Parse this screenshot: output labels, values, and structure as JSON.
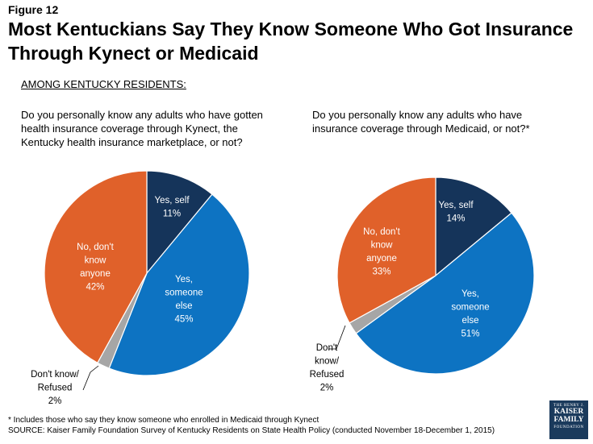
{
  "figure_label": "Figure 12",
  "title": "Most Kentuckians Say They Know Someone Who Got Insurance Through Kynect or Medicaid",
  "subtitle": "AMONG KENTUCKY RESIDENTS:",
  "footnote": "* Includes those who say they know someone who enrolled in Medicaid through Kynect",
  "source": "SOURCE: Kaiser Family Foundation Survey of Kentucky Residents on State Health Policy (conducted November 18-December 1, 2015)",
  "logo": {
    "line1": "THE HENRY J.",
    "line2": "KAISER",
    "line3": "FAMILY",
    "line4": "FOUNDATION"
  },
  "chart_data": [
    {
      "type": "pie",
      "title": "Do you personally know any adults who have gotten health insurance coverage through Kynect, the Kentucky health insurance marketplace, or not?",
      "categories": [
        "Yes, self",
        "Yes, someone else",
        "Don't know/ Refused",
        "No, don't know anyone"
      ],
      "values": [
        11,
        45,
        2,
        42
      ],
      "label_lines": [
        [
          "Yes, self",
          "11%"
        ],
        [
          "Yes,",
          "someone",
          "else",
          "45%"
        ],
        [
          "Don't know/",
          "Refused",
          "2%"
        ],
        [
          "No, don't",
          "know",
          "anyone",
          "42%"
        ]
      ],
      "colors": [
        "#15345a",
        "#0d73c2",
        "#a6a6a6",
        "#e0612a"
      ]
    },
    {
      "type": "pie",
      "title": "Do you personally know any adults who have insurance coverage through Medicaid, or not?*",
      "categories": [
        "Yes, self",
        "Yes, someone else",
        "Don't know/ Refused",
        "No, don't know anyone"
      ],
      "values": [
        14,
        51,
        2,
        33
      ],
      "label_lines": [
        [
          "Yes, self",
          "14%"
        ],
        [
          "Yes,",
          "someone",
          "else",
          "51%"
        ],
        [
          "Don't",
          "know/",
          "Refused",
          "2%"
        ],
        [
          "No, don't",
          "know",
          "anyone",
          "33%"
        ]
      ],
      "colors": [
        "#15345a",
        "#0d73c2",
        "#a6a6a6",
        "#e0612a"
      ]
    }
  ]
}
